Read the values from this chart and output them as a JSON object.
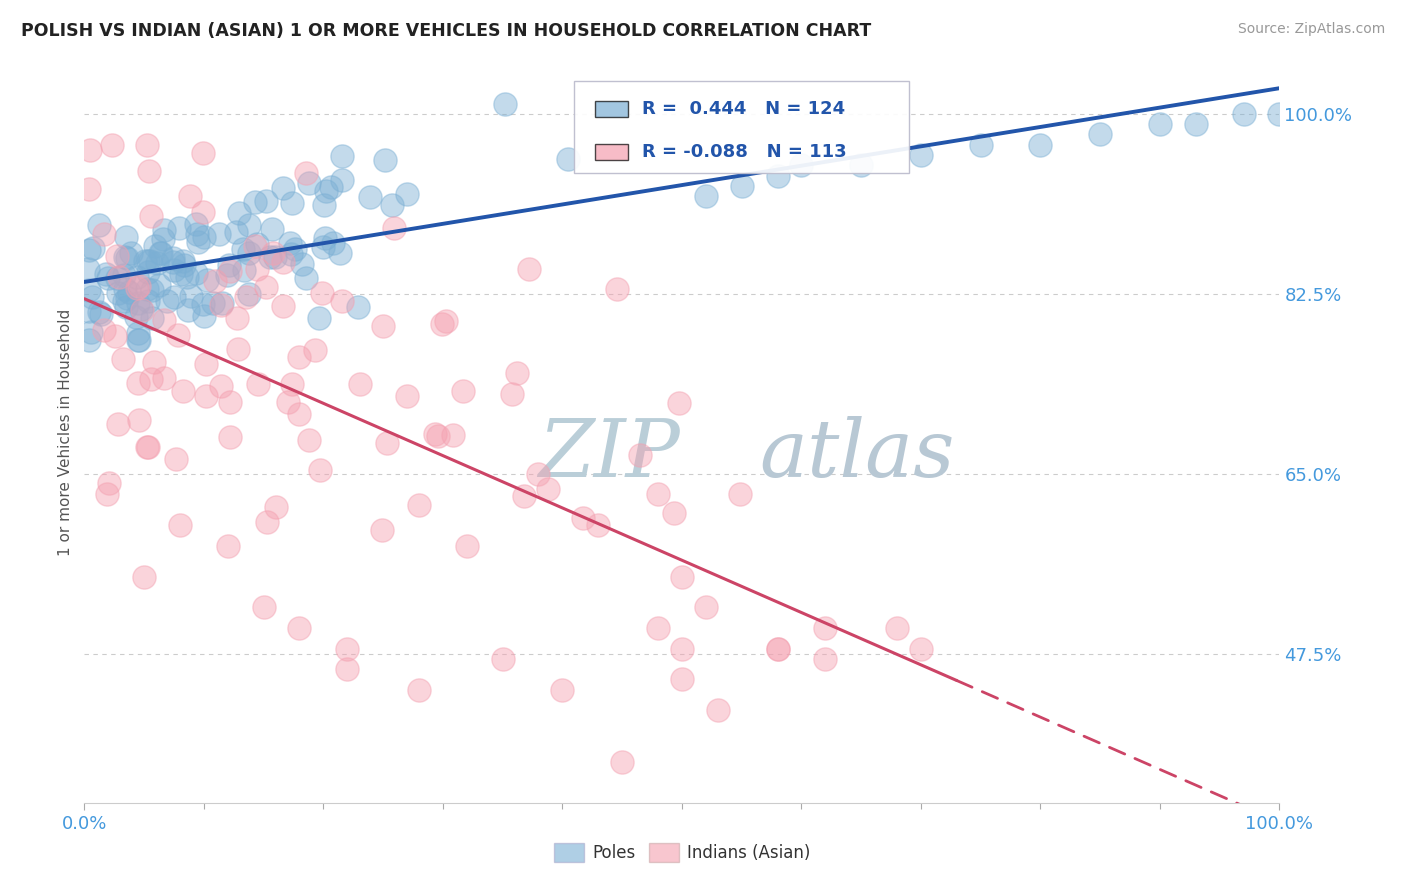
{
  "title": "POLISH VS INDIAN (ASIAN) 1 OR MORE VEHICLES IN HOUSEHOLD CORRELATION CHART",
  "source": "Source: ZipAtlas.com",
  "ylabel": "1 or more Vehicles in Household",
  "ytick_labels": [
    "47.5%",
    "65.0%",
    "82.5%",
    "100.0%"
  ],
  "ytick_values": [
    0.475,
    0.65,
    0.825,
    1.0
  ],
  "xmin": 0.0,
  "xmax": 1.0,
  "ymin": 0.33,
  "ymax": 1.05,
  "poles_R": 0.444,
  "poles_N": 124,
  "indians_R": -0.088,
  "indians_N": 113,
  "poles_color": "#7BAFD4",
  "indians_color": "#F4A0B0",
  "trend_blue_color": "#2255AA",
  "trend_pink_color": "#CC4466",
  "background_color": "#FFFFFF",
  "watermark_zip_color": "#C8DCF0",
  "watermark_atlas_color": "#C0C8D8",
  "legend_box_color": "#E8EEF5",
  "legend_text_color": "#2255AA",
  "ytick_color": "#4499DD",
  "xtick_color": "#4499DD"
}
